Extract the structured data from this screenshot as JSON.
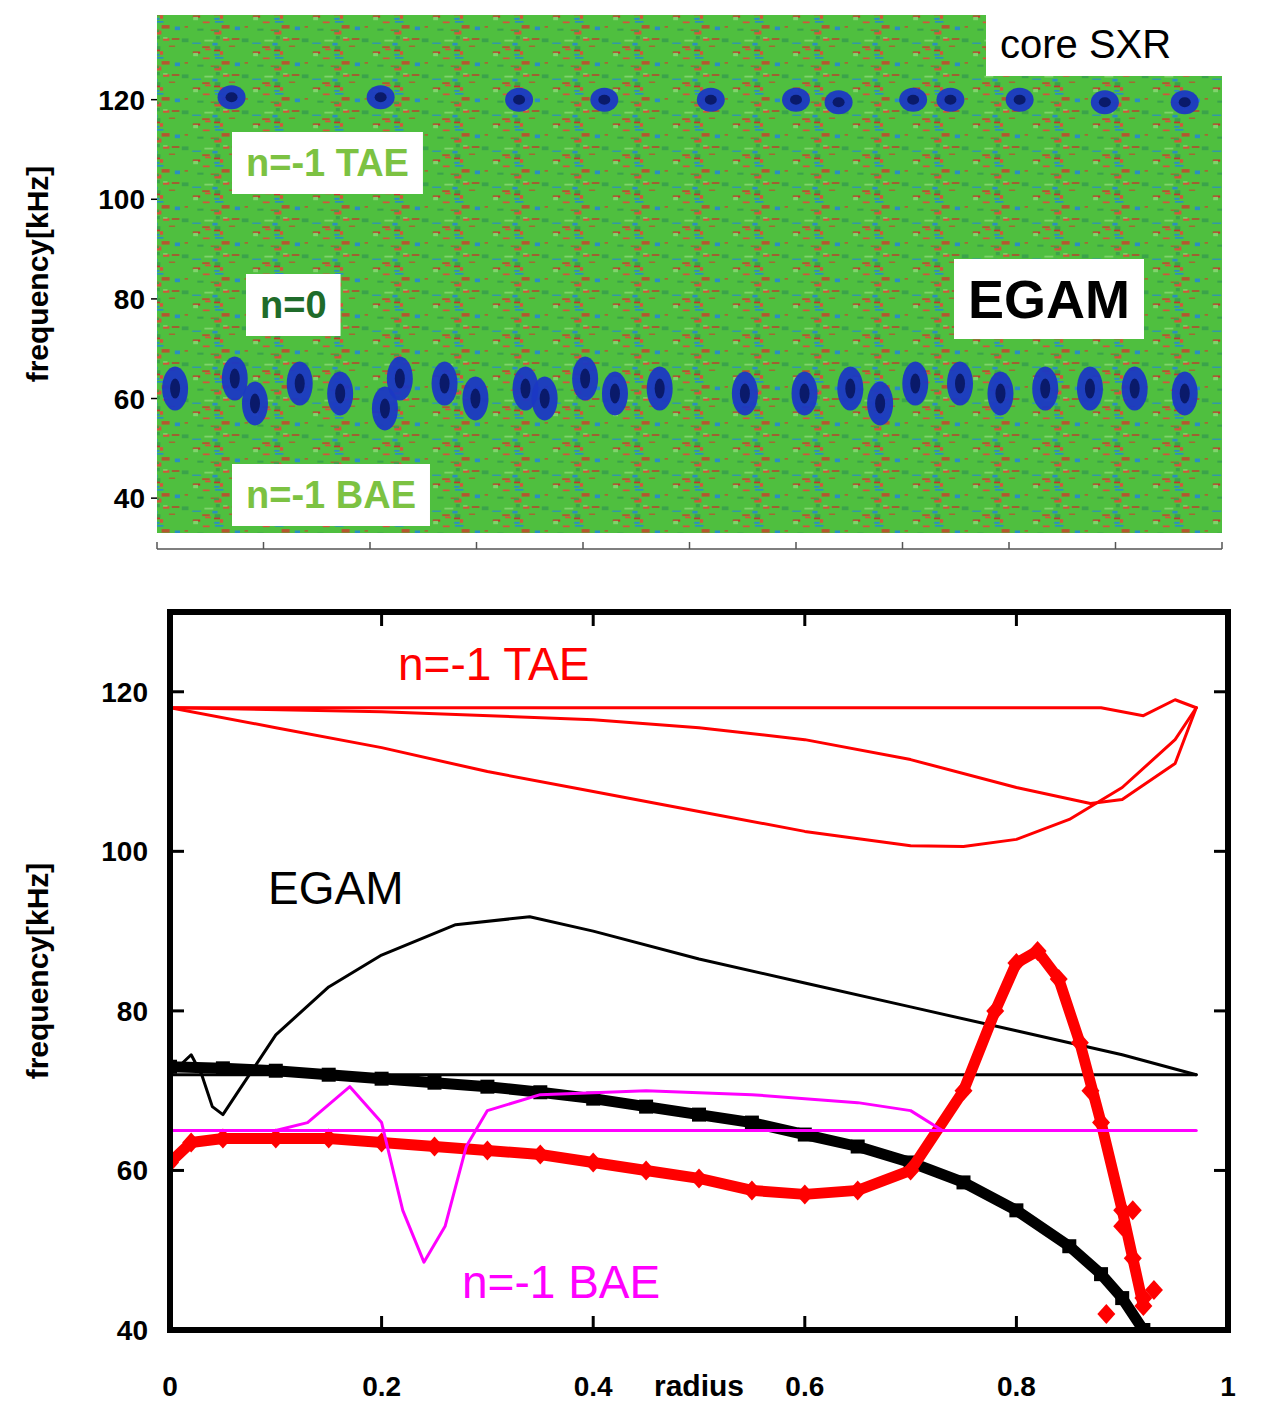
{
  "chart_data": [
    {
      "type": "scatter",
      "marker": "blob",
      "ylabel": "frequency[kHz]",
      "xlim": [
        0,
        1
      ],
      "xticks": [
        0,
        0.1,
        0.2,
        0.3,
        0.4,
        0.5,
        0.6,
        0.7,
        0.8,
        0.9,
        1
      ],
      "ylim": [
        33,
        137
      ],
      "yticks": [
        40,
        60,
        80,
        100,
        120
      ],
      "tick_labels": "y",
      "annotations": [
        "core SXR",
        "n=-1 TAE",
        "n=0",
        "EGAM",
        "n=-1 BAE"
      ],
      "series": [
        {
          "color": "#1b38c4",
          "x": [
            0.07,
            0.21,
            0.34,
            0.42,
            0.52,
            0.6,
            0.64,
            0.71,
            0.745,
            0.81,
            0.89,
            0.965
          ],
          "values": [
            120.5,
            120.5,
            120,
            120,
            120,
            120,
            119.5,
            120,
            120,
            120,
            119.5,
            119.5
          ]
        },
        {
          "color": "#1b38c4",
          "x": [
            0.017,
            0.073,
            0.092,
            0.134,
            0.172,
            0.214,
            0.228,
            0.27,
            0.299,
            0.346,
            0.364,
            0.402,
            0.43,
            0.472,
            0.552,
            0.608,
            0.651,
            0.679,
            0.712,
            0.754,
            0.792,
            0.834,
            0.876,
            0.918,
            0.965
          ],
          "values": [
            62,
            64,
            59,
            63,
            61,
            58,
            64,
            63,
            60,
            62,
            60,
            64,
            61,
            62,
            61,
            61,
            62,
            59,
            63,
            63,
            61,
            62,
            62,
            62,
            61
          ]
        }
      ]
    },
    {
      "type": "line",
      "xlabel": "radius",
      "ylabel": "frequency[kHz]",
      "xlim": [
        0,
        1
      ],
      "xticks": [
        0,
        0.2,
        0.4,
        0.6,
        0.8,
        1
      ],
      "ylim": [
        40,
        130
      ],
      "yticks": [
        40,
        60,
        80,
        100,
        120
      ],
      "annotations": [
        "n=-1 TAE",
        "EGAM",
        "n=-1 BAE"
      ],
      "series": [
        {
          "color": "#ff0000",
          "marker": "none",
          "line_style": "solid",
          "x": [
            0,
            0.5,
            0.88,
            0.92,
            0.95,
            0.97
          ],
          "values": [
            118,
            118,
            118,
            117,
            119,
            118
          ]
        },
        {
          "color": "#ff0000",
          "marker": "none",
          "line_style": "solid",
          "x": [
            0,
            0.1,
            0.2,
            0.3,
            0.4,
            0.5,
            0.6,
            0.7,
            0.75,
            0.8,
            0.85,
            0.9,
            0.95,
            0.97
          ],
          "values": [
            118,
            115.5,
            113,
            110,
            107.5,
            105,
            102.5,
            100.7,
            100.6,
            101.5,
            104,
            108,
            114,
            118
          ]
        },
        {
          "color": "#ff0000",
          "marker": "none",
          "line_style": "solid",
          "x": [
            0,
            0.2,
            0.4,
            0.5,
            0.6,
            0.7,
            0.8,
            0.87,
            0.9,
            0.95,
            0.97
          ],
          "values": [
            118,
            117.5,
            116.5,
            115.5,
            114,
            111.5,
            108,
            106,
            106.5,
            111,
            118
          ]
        },
        {
          "color": "#000000",
          "marker": "none",
          "line_style": "solid",
          "x": [
            0,
            0.02,
            0.03,
            0.04,
            0.05,
            0.065,
            0.1,
            0.15,
            0.2,
            0.27,
            0.34,
            0.4,
            0.5,
            0.6,
            0.7,
            0.8,
            0.9,
            0.97
          ],
          "values": [
            72,
            74.5,
            72,
            68,
            67,
            70,
            77,
            83,
            87,
            90.8,
            91.8,
            90,
            86.5,
            83.5,
            80.5,
            77.5,
            74.5,
            72
          ]
        },
        {
          "color": "#000000",
          "marker": "none",
          "line_style": "solid",
          "x": [
            0,
            0.97
          ],
          "values": [
            72,
            72
          ]
        },
        {
          "color": "#000000",
          "marker": "square",
          "line_style": "solid",
          "x": [
            0,
            0.05,
            0.1,
            0.15,
            0.2,
            0.25,
            0.3,
            0.35,
            0.4,
            0.45,
            0.5,
            0.55,
            0.6,
            0.65,
            0.7,
            0.75,
            0.8,
            0.85,
            0.88,
            0.9,
            0.92
          ],
          "values": [
            73,
            72.8,
            72.5,
            72,
            71.5,
            71,
            70.5,
            69.8,
            69,
            68,
            67,
            66,
            64.5,
            63,
            61,
            58.5,
            55,
            50.5,
            47,
            44,
            40
          ]
        },
        {
          "color": "#ff0000",
          "marker": "diamond",
          "line_style": "solid",
          "x": [
            0,
            0.02,
            0.05,
            0.1,
            0.15,
            0.2,
            0.25,
            0.3,
            0.35,
            0.4,
            0.45,
            0.5,
            0.55,
            0.6,
            0.65,
            0.7,
            0.75,
            0.78,
            0.8,
            0.82,
            0.84,
            0.86,
            0.88,
            0.9,
            0.91,
            0.92
          ],
          "values": [
            61,
            63.5,
            64,
            64,
            64,
            63.5,
            63,
            62.5,
            62,
            61,
            60,
            59,
            57.5,
            57,
            57.5,
            60,
            70,
            80,
            86,
            87.5,
            84,
            76,
            66,
            55,
            49,
            43
          ]
        },
        {
          "color": "#ff0000",
          "marker": "diamond",
          "line_style": "none",
          "x": [
            0.87,
            0.885,
            0.9,
            0.91,
            0.92,
            0.93
          ],
          "values": [
            70,
            42,
            53,
            55,
            44,
            45
          ]
        },
        {
          "color": "#ff00ff",
          "marker": "none",
          "line_style": "solid",
          "x": [
            0,
            0.97
          ],
          "values": [
            65,
            65
          ]
        },
        {
          "color": "#ff00ff",
          "marker": "none",
          "line_style": "solid",
          "x": [
            0,
            0.1,
            0.13,
            0.17,
            0.2,
            0.22,
            0.24,
            0.26,
            0.28,
            0.3,
            0.35,
            0.45,
            0.55,
            0.65,
            0.7,
            0.73
          ],
          "values": [
            65,
            65,
            66,
            70.5,
            66,
            55,
            48.5,
            53,
            63,
            67.5,
            69.5,
            70,
            69.5,
            68.5,
            67.5,
            65
          ]
        }
      ]
    }
  ]
}
